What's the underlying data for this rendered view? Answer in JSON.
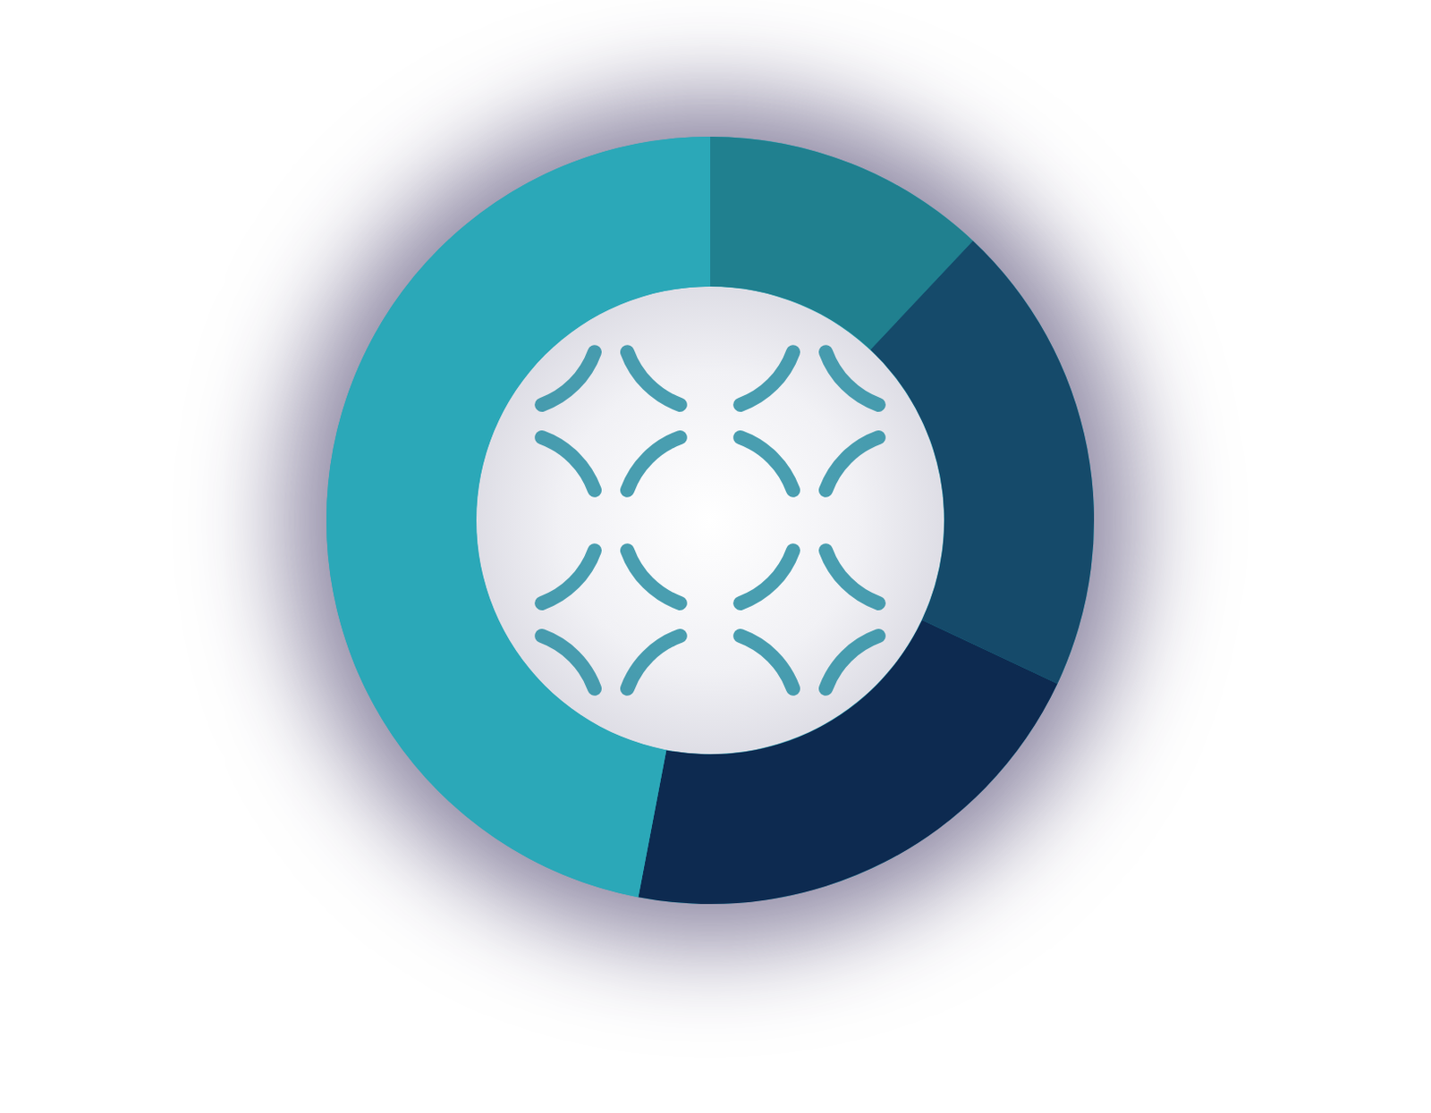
{
  "chart_data": {
    "type": "donut",
    "values": [
      12,
      20,
      21,
      47
    ],
    "colors": [
      "#20808f",
      "#154a6a",
      "#0d2a50",
      "#2ba8b8"
    ]
  }
}
